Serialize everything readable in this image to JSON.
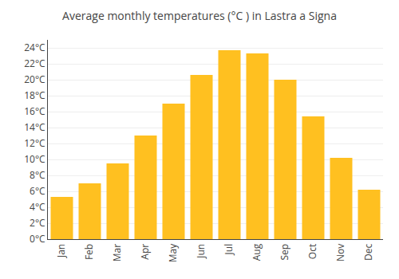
{
  "chart_data": {
    "type": "bar",
    "title": "Average monthly temperatures (°C ) in Lastra a Signa",
    "categories": [
      "Jan",
      "Feb",
      "Mar",
      "Apr",
      "May",
      "Jun",
      "Jul",
      "Aug",
      "Sep",
      "Oct",
      "Nov",
      "Dec"
    ],
    "values": [
      5.3,
      7.0,
      9.5,
      13.0,
      17.0,
      20.6,
      23.7,
      23.3,
      20.0,
      15.4,
      10.2,
      6.2
    ],
    "color": "#FFC020",
    "ylim": [
      0,
      25
    ],
    "yticks": [
      {
        "value": 0,
        "label": "0°C"
      },
      {
        "value": 2,
        "label": "2°C"
      },
      {
        "value": 4,
        "label": "4°C"
      },
      {
        "value": 6,
        "label": "6°C"
      },
      {
        "value": 8,
        "label": "8°C"
      },
      {
        "value": 10,
        "label": "10°C"
      },
      {
        "value": 12,
        "label": "12°C"
      },
      {
        "value": 14,
        "label": "14°C"
      },
      {
        "value": 16,
        "label": "16°C"
      },
      {
        "value": 18,
        "label": "18°C"
      },
      {
        "value": 20,
        "label": "20°C"
      },
      {
        "value": 22,
        "label": "22°C"
      },
      {
        "value": 24,
        "label": "24°C"
      }
    ],
    "grid": true
  }
}
